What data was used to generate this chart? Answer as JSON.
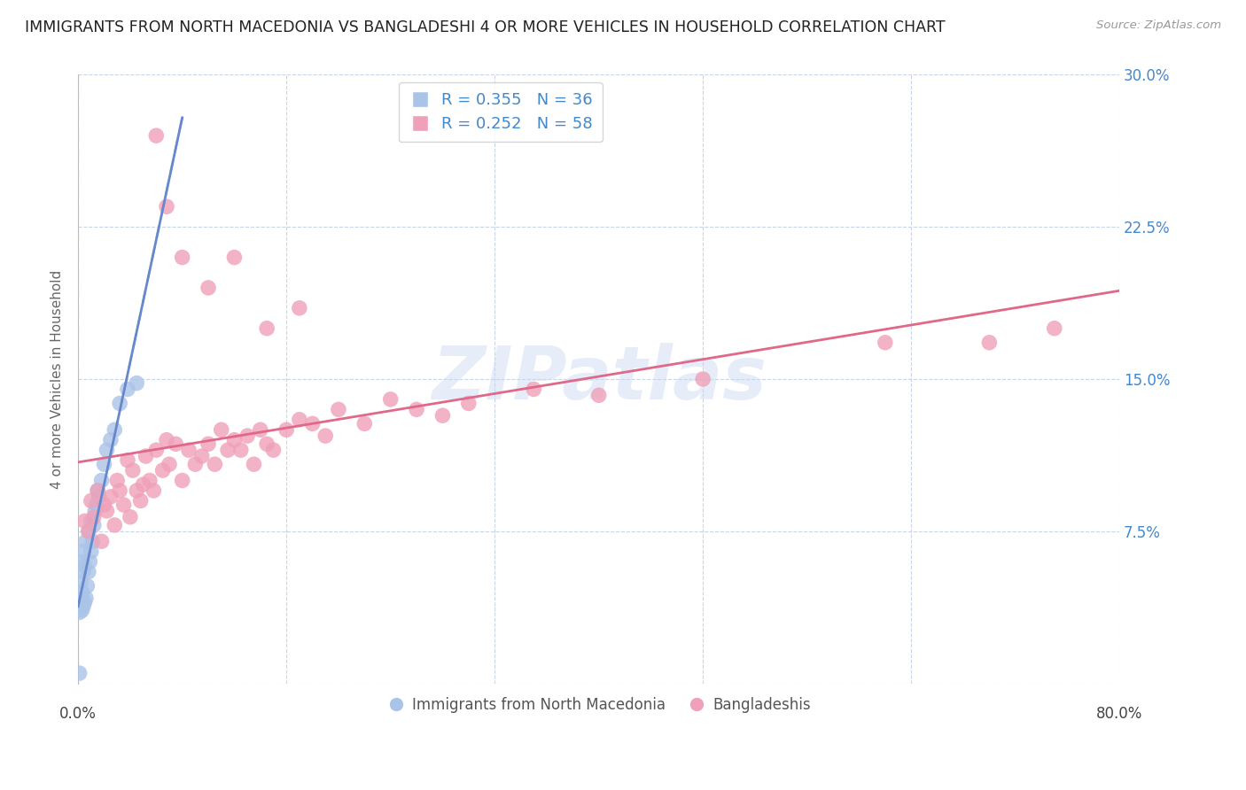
{
  "title": "IMMIGRANTS FROM NORTH MACEDONIA VS BANGLADESHI 4 OR MORE VEHICLES IN HOUSEHOLD CORRELATION CHART",
  "source": "Source: ZipAtlas.com",
  "ylabel": "4 or more Vehicles in Household",
  "xlim": [
    0.0,
    0.8
  ],
  "ylim": [
    0.0,
    0.3
  ],
  "yticks": [
    0.0,
    0.075,
    0.15,
    0.225,
    0.3
  ],
  "ytick_labels": [
    "",
    "7.5%",
    "15.0%",
    "22.5%",
    "30.0%"
  ],
  "xticks": [
    0.0,
    0.16,
    0.32,
    0.48,
    0.64,
    0.8
  ],
  "xtick_labels": [
    "0.0%",
    "",
    "",
    "",
    "",
    "80.0%"
  ],
  "series1_label": "Immigrants from North Macedonia",
  "series2_label": "Bangladeshis",
  "series1_color": "#aac4e8",
  "series2_color": "#f0a0b8",
  "series1_line_color": "#6688cc",
  "series2_line_color": "#e06888",
  "series1_R": 0.355,
  "series1_N": 36,
  "series2_R": 0.252,
  "series2_N": 58,
  "watermark_text": "ZIPatlas",
  "watermark_color": "#c8d8f0",
  "background_color": "#ffffff",
  "grid_color": "#c8d4e8",
  "title_fontsize": 12.5,
  "ylabel_fontsize": 11,
  "tick_fontsize": 12,
  "right_tick_color": "#4488cc",
  "legend_text_color": "#4488cc",
  "legend_R_color": "#cc8844",
  "legend_N_color": "#4488cc",
  "series1_x": [
    0.001,
    0.001,
    0.002,
    0.002,
    0.002,
    0.003,
    0.003,
    0.003,
    0.004,
    0.004,
    0.004,
    0.005,
    0.005,
    0.006,
    0.006,
    0.007,
    0.008,
    0.008,
    0.009,
    0.01,
    0.01,
    0.011,
    0.012,
    0.013,
    0.014,
    0.015,
    0.016,
    0.018,
    0.02,
    0.022,
    0.025,
    0.028,
    0.032,
    0.038,
    0.045,
    0.001
  ],
  "series1_y": [
    0.035,
    0.04,
    0.038,
    0.042,
    0.05,
    0.036,
    0.045,
    0.06,
    0.038,
    0.055,
    0.065,
    0.04,
    0.058,
    0.042,
    0.07,
    0.048,
    0.055,
    0.075,
    0.06,
    0.065,
    0.08,
    0.07,
    0.078,
    0.085,
    0.088,
    0.095,
    0.092,
    0.1,
    0.108,
    0.115,
    0.12,
    0.125,
    0.138,
    0.145,
    0.148,
    0.005
  ],
  "series2_x": [
    0.005,
    0.008,
    0.01,
    0.012,
    0.015,
    0.018,
    0.02,
    0.022,
    0.025,
    0.028,
    0.03,
    0.032,
    0.035,
    0.038,
    0.04,
    0.042,
    0.045,
    0.048,
    0.05,
    0.052,
    0.055,
    0.058,
    0.06,
    0.065,
    0.068,
    0.07,
    0.075,
    0.08,
    0.085,
    0.09,
    0.095,
    0.1,
    0.105,
    0.11,
    0.115,
    0.12,
    0.125,
    0.13,
    0.135,
    0.14,
    0.145,
    0.15,
    0.16,
    0.17,
    0.18,
    0.19,
    0.2,
    0.22,
    0.24,
    0.26,
    0.28,
    0.3,
    0.35,
    0.4,
    0.48,
    0.62,
    0.7,
    0.75
  ],
  "series2_y": [
    0.08,
    0.075,
    0.09,
    0.082,
    0.095,
    0.07,
    0.088,
    0.085,
    0.092,
    0.078,
    0.1,
    0.095,
    0.088,
    0.11,
    0.082,
    0.105,
    0.095,
    0.09,
    0.098,
    0.112,
    0.1,
    0.095,
    0.115,
    0.105,
    0.12,
    0.108,
    0.118,
    0.1,
    0.115,
    0.108,
    0.112,
    0.118,
    0.108,
    0.125,
    0.115,
    0.12,
    0.115,
    0.122,
    0.108,
    0.125,
    0.118,
    0.115,
    0.125,
    0.13,
    0.128,
    0.122,
    0.135,
    0.128,
    0.14,
    0.135,
    0.132,
    0.138,
    0.145,
    0.142,
    0.15,
    0.168,
    0.168,
    0.175
  ],
  "series2_outliers_x": [
    0.06,
    0.068,
    0.08,
    0.1,
    0.12,
    0.145,
    0.17
  ],
  "series2_outliers_y": [
    0.27,
    0.235,
    0.21,
    0.195,
    0.21,
    0.175,
    0.185
  ]
}
